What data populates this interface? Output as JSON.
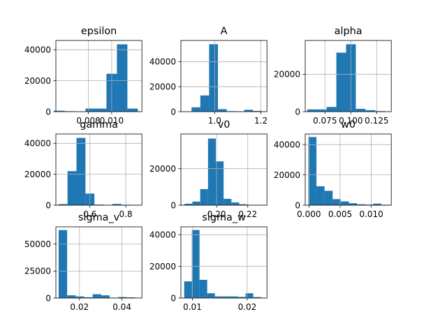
{
  "chart_data": [
    {
      "type": "bar",
      "title": "epsilon",
      "x": [
        0.0055,
        0.0064,
        0.0073,
        0.0082,
        0.0091,
        0.01,
        0.0109,
        0.0118
      ],
      "values": [
        600,
        300,
        100,
        2000,
        2000,
        24500,
        43500,
        2000
      ],
      "xlim": [
        0.0052,
        0.0126
      ],
      "ylim": [
        0,
        46000
      ],
      "xticks": [
        0.008,
        0.01
      ],
      "xticklabels": [
        "0.008",
        "0.010"
      ],
      "yticks": [
        0,
        20000,
        40000
      ],
      "yticklabels": [
        "0",
        "20000",
        "40000"
      ]
    },
    {
      "type": "bar",
      "title": "A",
      "x": [
        0.919,
        0.957,
        0.995,
        1.033,
        1.071,
        1.109,
        1.147,
        1.185
      ],
      "values": [
        3500,
        13000,
        54000,
        2000,
        400,
        300,
        1500,
        600
      ],
      "xlim": [
        0.854,
        1.226
      ],
      "ylim": [
        0,
        57000
      ],
      "xticks": [
        1.0,
        1.2
      ],
      "xticklabels": [
        "1.0",
        "1.2"
      ],
      "yticks": [
        0,
        20000,
        40000
      ],
      "yticklabels": [
        "0",
        "20000",
        "40000"
      ]
    },
    {
      "type": "bar",
      "title": "alpha",
      "x": [
        0.0625,
        0.0719,
        0.0813,
        0.0907,
        0.1001,
        0.1095,
        0.1189,
        0.1283
      ],
      "values": [
        1200,
        1200,
        2500,
        31500,
        36000,
        1500,
        800,
        300
      ],
      "xlim": [
        0.0559,
        0.1391
      ],
      "ylim": [
        0,
        38000
      ],
      "xticks": [
        0.075,
        0.1,
        0.125
      ],
      "xticklabels": [
        "0.075",
        "0.100",
        "0.125"
      ],
      "yticks": [
        0,
        20000
      ],
      "yticklabels": [
        "0",
        "20000"
      ]
    },
    {
      "type": "bar",
      "title": "gamma",
      "x": [
        0.45,
        0.5,
        0.55,
        0.6,
        0.65,
        0.7,
        0.75,
        0.8,
        0.85
      ],
      "values": [
        700,
        22000,
        43500,
        7500,
        400,
        200,
        800,
        300,
        200
      ],
      "xlim": [
        0.41,
        0.89
      ],
      "ylim": [
        0,
        46000
      ],
      "xticks": [
        0.6,
        0.8
      ],
      "xticklabels": [
        "0.6",
        "0.8"
      ],
      "yticks": [
        0,
        20000,
        40000
      ],
      "yticklabels": [
        "0",
        "20000",
        "40000"
      ]
    },
    {
      "type": "bar",
      "title": "v0",
      "x": [
        0.182,
        0.187,
        0.192,
        0.197,
        0.202,
        0.207,
        0.212,
        0.217,
        0.222,
        0.227
      ],
      "values": [
        800,
        2000,
        8800,
        36500,
        24000,
        3500,
        1500,
        500,
        200,
        100
      ],
      "xlim": [
        0.1771,
        0.2323
      ],
      "ylim": [
        0,
        39000
      ],
      "xticks": [
        0.2,
        0.22
      ],
      "xticklabels": [
        "0.20",
        "0.22"
      ],
      "yticks": [
        0,
        20000
      ],
      "yticklabels": [
        "0",
        "20000"
      ]
    },
    {
      "type": "bar",
      "title": "w0",
      "x": [
        0.00055,
        0.00185,
        0.00315,
        0.00445,
        0.00575,
        0.00705,
        0.00835,
        0.00965,
        0.01095,
        0.01225
      ],
      "values": [
        45000,
        12500,
        9500,
        4000,
        2500,
        1300,
        600,
        400,
        1000,
        300
      ],
      "xlim": [
        -0.0006,
        0.0132
      ],
      "ylim": [
        0,
        47000
      ],
      "xticks": [
        0.0,
        0.005,
        0.01
      ],
      "xticklabels": [
        "0.000",
        "0.005",
        "0.010"
      ],
      "yticks": [
        0,
        20000,
        40000
      ],
      "yticklabels": [
        "0",
        "20000",
        "40000"
      ]
    },
    {
      "type": "bar",
      "title": "sigma_v",
      "x": [
        0.0122,
        0.0162,
        0.0202,
        0.0242,
        0.0282,
        0.0322,
        0.0362,
        0.0402,
        0.0442
      ],
      "values": [
        63000,
        2500,
        1500,
        700,
        3500,
        2500,
        200,
        900,
        600
      ],
      "xlim": [
        0.0089,
        0.0494
      ],
      "ylim": [
        0,
        66000
      ],
      "xticks": [
        0.02,
        0.04
      ],
      "xticklabels": [
        "0.02",
        "0.04"
      ],
      "yticks": [
        0,
        25000,
        50000
      ],
      "yticklabels": [
        "0",
        "25000",
        "50000"
      ]
    },
    {
      "type": "bar",
      "title": "sigma_w",
      "x": [
        0.0092,
        0.0106,
        0.012,
        0.0134,
        0.0148,
        0.0162,
        0.0176,
        0.019,
        0.0204,
        0.0218
      ],
      "values": [
        10500,
        43000,
        11500,
        3000,
        1000,
        1000,
        1000,
        700,
        3000,
        600
      ],
      "xlim": [
        0.0079,
        0.0236
      ],
      "ylim": [
        0,
        45000
      ],
      "xticks": [
        0.01,
        0.02
      ],
      "xticklabels": [
        "0.01",
        "0.02"
      ],
      "yticks": [
        0,
        20000,
        40000
      ],
      "yticklabels": [
        "0",
        "20000",
        "40000"
      ]
    }
  ],
  "colors": {
    "bar": "#1f77b4",
    "grid": "#b0b0b0",
    "spine": "#000000",
    "background": "#ffffff"
  }
}
